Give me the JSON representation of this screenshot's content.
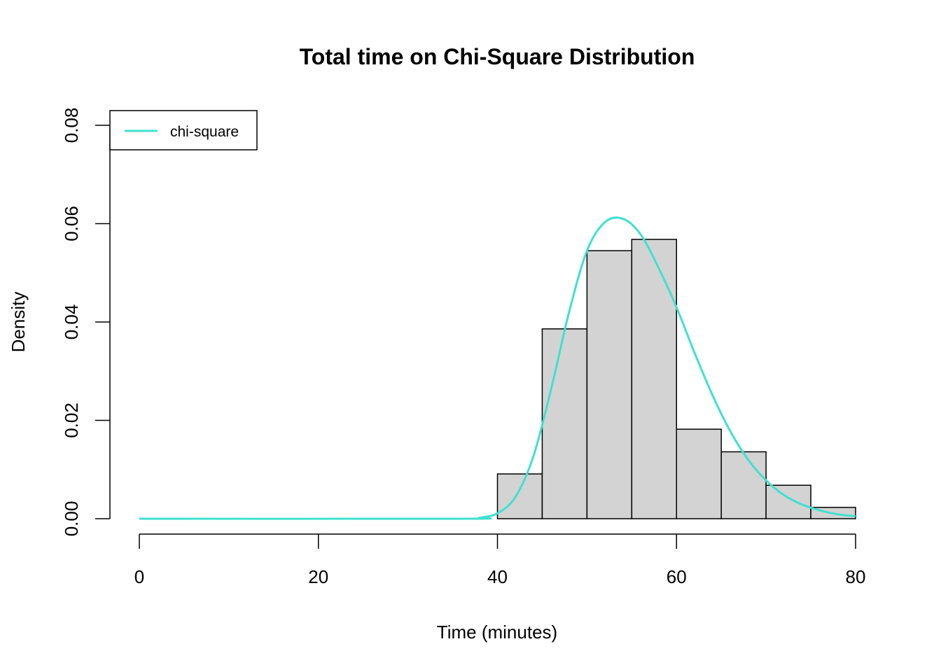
{
  "chart_data": {
    "type": "bar",
    "title": "Total time on Chi-Square Distribution",
    "xlabel": "Time (minutes)",
    "ylabel": "Density",
    "xlim": [
      0,
      80
    ],
    "ylim": [
      0,
      0.08
    ],
    "x_ticks": [
      "0",
      "20",
      "40",
      "60",
      "80"
    ],
    "y_ticks": [
      "0.00",
      "0.02",
      "0.04",
      "0.06",
      "0.08"
    ],
    "grid": false,
    "legend_position": "top-left",
    "bar_color": "#d3d3d3",
    "bins": [
      {
        "start": 40,
        "end": 45,
        "density": 0.0091
      },
      {
        "start": 45,
        "end": 50,
        "density": 0.0386
      },
      {
        "start": 50,
        "end": 55,
        "density": 0.0545
      },
      {
        "start": 55,
        "end": 60,
        "density": 0.0568
      },
      {
        "start": 60,
        "end": 65,
        "density": 0.0182
      },
      {
        "start": 65,
        "end": 70,
        "density": 0.0136
      },
      {
        "start": 70,
        "end": 75,
        "density": 0.0068
      },
      {
        "start": 75,
        "end": 80,
        "density": 0.0023
      }
    ],
    "series": [
      {
        "name": "chi-square",
        "color": "#40e0d0",
        "x": [
          0,
          36,
          38,
          40,
          42,
          44,
          46,
          48,
          50,
          52,
          54,
          56,
          58,
          60,
          62,
          64,
          66,
          68,
          70,
          72,
          74,
          76,
          78,
          80
        ],
        "values": [
          0,
          0,
          0.0002,
          0.0011,
          0.0044,
          0.0126,
          0.0264,
          0.042,
          0.0545,
          0.0603,
          0.061,
          0.0578,
          0.051,
          0.043,
          0.0338,
          0.0252,
          0.0178,
          0.012,
          0.0078,
          0.0048,
          0.0029,
          0.0017,
          0.0009,
          0.0005
        ]
      }
    ]
  }
}
